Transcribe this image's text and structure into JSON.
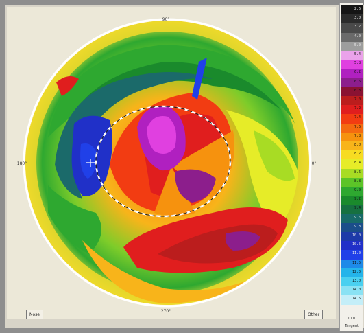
{
  "map": {
    "axis_top_label": "90°",
    "axis_bottom_label": "270°",
    "axis_left_label": "180°",
    "axis_right_label": "0°",
    "left_button": "Nose",
    "right_button": "Other"
  },
  "legend": {
    "unit": "mm",
    "type": "Tangent",
    "scale": [
      {
        "value": "2.6",
        "color": "#151515"
      },
      {
        "value": "3.0",
        "color": "#2b2b2b"
      },
      {
        "value": "3.2",
        "color": "#4a4a4a"
      },
      {
        "value": "4.0",
        "color": "#6a6a6a"
      },
      {
        "value": "5.0",
        "color": "#9d9d9d"
      },
      {
        "value": "5.4",
        "color": "#eaa2ea"
      },
      {
        "value": "5.8",
        "color": "#e040e0"
      },
      {
        "value": "6.2",
        "color": "#b020c0"
      },
      {
        "value": "6.6",
        "color": "#8c1e8c"
      },
      {
        "value": "6.8",
        "color": "#8a1232"
      },
      {
        "value": "7.0",
        "color": "#bb1d1d"
      },
      {
        "value": "7.2",
        "color": "#e01e1e"
      },
      {
        "value": "7.4",
        "color": "#f23c12"
      },
      {
        "value": "7.6",
        "color": "#f46a10"
      },
      {
        "value": "7.8",
        "color": "#f6920e"
      },
      {
        "value": "8.0",
        "color": "#f8b41a"
      },
      {
        "value": "8.2",
        "color": "#f7dc22"
      },
      {
        "value": "8.4",
        "color": "#e6ec28"
      },
      {
        "value": "8.6",
        "color": "#a8dc24"
      },
      {
        "value": "8.8",
        "color": "#5cc428"
      },
      {
        "value": "9.0",
        "color": "#2ea830"
      },
      {
        "value": "9.2",
        "color": "#1a8a2c"
      },
      {
        "value": "9.4",
        "color": "#167040"
      },
      {
        "value": "9.6",
        "color": "#186a68"
      },
      {
        "value": "9.8",
        "color": "#1b4e8a"
      },
      {
        "value": "10.0",
        "color": "#1d3aa8"
      },
      {
        "value": "10.5",
        "color": "#2030c8"
      },
      {
        "value": "11.0",
        "color": "#2040e8"
      },
      {
        "value": "11.5",
        "color": "#1e8ae8"
      },
      {
        "value": "12.0",
        "color": "#24b4ea"
      },
      {
        "value": "13.0",
        "color": "#4ad0f0"
      },
      {
        "value": "14.0",
        "color": "#8ae2f4"
      },
      {
        "value": "14.5",
        "color": "#c4eef8"
      }
    ]
  }
}
